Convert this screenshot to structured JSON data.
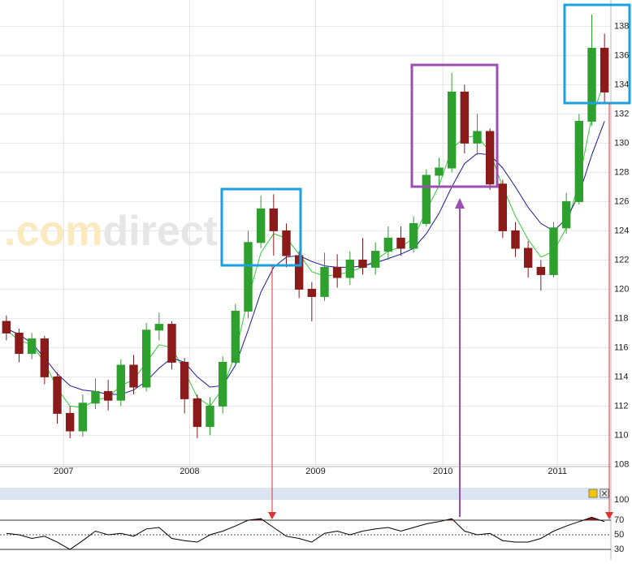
{
  "watermark": {
    "prefix": ".com",
    "suffix": "direct"
  },
  "separator_label": "100",
  "chart_data": [
    {
      "type": "candlestick",
      "categories": [
        null,
        null,
        null,
        null,
        null,
        null,
        null,
        null,
        null,
        null,
        null,
        null,
        null,
        null,
        null,
        null,
        null,
        null,
        null,
        null,
        null,
        null,
        null,
        null,
        null,
        null,
        null,
        null,
        null,
        null,
        null,
        null,
        null,
        null,
        null,
        null,
        null,
        null,
        null,
        null,
        null,
        null,
        null,
        null,
        null,
        null,
        null,
        null
      ],
      "open": [
        117.8,
        117,
        115.6,
        116.6,
        114,
        111.5,
        110.3,
        112.2,
        113,
        112.4,
        114.8,
        113.3,
        117.2,
        117.6,
        115,
        112.5,
        110.6,
        112,
        115,
        118.5,
        123.2,
        125.5,
        124,
        122.3,
        120,
        119.5,
        121.5,
        120.8,
        122,
        121.5,
        122.6,
        123.5,
        122.8,
        124.5,
        127.8,
        128.3,
        133.5,
        130,
        130.8,
        127.2,
        124,
        122.8,
        121.5,
        121,
        124.2,
        126,
        131.5,
        136.5
      ],
      "high": [
        118.2,
        117.3,
        117,
        116.8,
        114.3,
        112,
        112.8,
        113.9,
        113.8,
        115.2,
        115.5,
        117.7,
        118.4,
        117.8,
        115.3,
        112.8,
        112.6,
        115.4,
        119,
        124,
        126.4,
        126.5,
        124.5,
        122.6,
        120.5,
        122.5,
        122.4,
        122.6,
        123.5,
        123.2,
        124.3,
        124.3,
        125,
        128.2,
        129,
        134.8,
        134,
        132,
        131,
        127.5,
        124.6,
        123.3,
        122,
        124.6,
        126.6,
        132,
        138.8,
        137.5
      ],
      "low": [
        116.5,
        115,
        115.2,
        113.5,
        110.8,
        109.8,
        109.9,
        111.8,
        111.7,
        112,
        112.8,
        113,
        116.5,
        114.5,
        111.5,
        109.8,
        110,
        111.5,
        114.8,
        118,
        122.8,
        122.3,
        121.5,
        119.4,
        117.8,
        119.2,
        120.1,
        120.3,
        121,
        121,
        122,
        122.3,
        122.5,
        124.3,
        127,
        128,
        129.3,
        129.2,
        126.8,
        123.5,
        122.2,
        120.8,
        119.9,
        120.8,
        123.8,
        125.8,
        131.2,
        132.8
      ],
      "close": [
        117,
        115.6,
        116.6,
        114,
        111.5,
        110.3,
        112.2,
        113,
        112.4,
        114.8,
        113.3,
        117.2,
        117.6,
        115,
        112.5,
        110.6,
        112,
        115,
        118.5,
        123.2,
        125.5,
        124,
        122.3,
        120,
        119.5,
        121.5,
        120.8,
        122,
        121.5,
        122.6,
        123.5,
        122.8,
        124.5,
        127.8,
        128.3,
        133.5,
        130,
        130.8,
        127.2,
        124,
        122.8,
        121.5,
        121,
        124.2,
        126,
        131.5,
        136.5,
        133.5
      ],
      "up_color": "#2ea02e",
      "down_color": "#8b1a1a",
      "series": [
        {
          "color": "#33cc33",
          "values": [
            117.2,
            116.5,
            116.2,
            115,
            113.2,
            112,
            111.9,
            112.4,
            112.6,
            113.4,
            113.8,
            115,
            116.2,
            116,
            114.4,
            112.6,
            112,
            113.2,
            115.6,
            119.4,
            122.5,
            123.8,
            123.5,
            122.4,
            121.2,
            120.9,
            121,
            121.2,
            121.5,
            122,
            122.6,
            122.9,
            123.5,
            125.4,
            127.1,
            129.6,
            130.4,
            130.5,
            129.4,
            127,
            125,
            123.4,
            122.2,
            122.6,
            124.2,
            127.4,
            131.8,
            134.2
          ]
        },
        {
          "color": "#1a1aa0",
          "values": [
            117.3,
            116.9,
            116.3,
            115.3,
            114.2,
            113.4,
            113.1,
            113,
            112.8,
            112.8,
            113.1,
            113.7,
            114.6,
            115.3,
            115,
            114,
            113.3,
            113.4,
            114.8,
            117.2,
            119.8,
            121.5,
            122.2,
            122.3,
            121.9,
            121.6,
            121.5,
            121.5,
            121.6,
            121.8,
            122.1,
            122.4,
            122.8,
            123.8,
            125.2,
            127,
            128.6,
            129.3,
            129.2,
            128.3,
            127,
            125.6,
            124.5,
            124,
            124.8,
            126.5,
            129.2,
            131.5
          ]
        }
      ],
      "xlim": [
        -0.5,
        47.5
      ],
      "xticks": [
        {
          "value": 4.5,
          "label": "2007"
        },
        {
          "value": 14.4,
          "label": "2008"
        },
        {
          "value": 24.3,
          "label": "2009"
        },
        {
          "value": 34.3,
          "label": "2010"
        },
        {
          "value": 43.3,
          "label": "2011"
        }
      ],
      "ylim": [
        107.8,
        139.8
      ],
      "yticks": [
        108,
        110,
        112,
        114,
        116,
        118,
        120,
        122,
        124,
        126,
        128,
        130,
        132,
        134,
        136,
        138
      ],
      "grid": true
    },
    {
      "type": "line",
      "series": [
        {
          "color": "#000000",
          "values": [
            52,
            50,
            45,
            48,
            40,
            30,
            42,
            55,
            50,
            52,
            48,
            58,
            60,
            45,
            42,
            40,
            50,
            55,
            62,
            70,
            72,
            60,
            48,
            45,
            40,
            52,
            55,
            50,
            55,
            58,
            60,
            55,
            60,
            65,
            68,
            72,
            55,
            50,
            52,
            42,
            40,
            40,
            45,
            55,
            62,
            68,
            74,
            68
          ]
        }
      ],
      "xlim": [
        -0.5,
        47.5
      ],
      "ylim": [
        17.8,
        80
      ],
      "yticks": [
        30,
        50,
        70
      ],
      "over_color": "#8b1a1a",
      "under_color": "#2e8b2e"
    }
  ]
}
